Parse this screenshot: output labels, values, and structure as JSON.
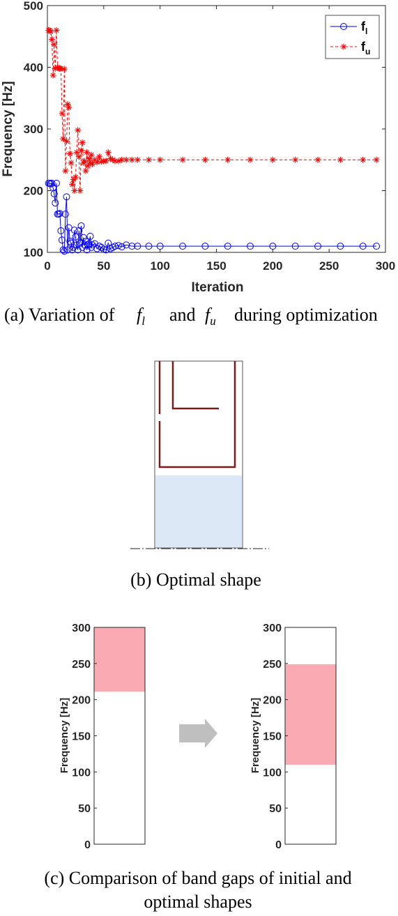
{
  "chart_data": [
    {
      "type": "line",
      "xlabel": "Iteration",
      "ylabel": "Frequency [Hz]",
      "xlim": [
        0,
        300
      ],
      "ylim": [
        100,
        500
      ],
      "xticks": [
        0,
        50,
        100,
        150,
        200,
        250,
        300
      ],
      "yticks": [
        100,
        200,
        300,
        400,
        500
      ],
      "legend": "top-right",
      "series": [
        {
          "name": "f_l",
          "legend_main": "f",
          "legend_sub": "l",
          "color": "#0000ff",
          "marker": "circle",
          "x": [
            1,
            2,
            3,
            4,
            5,
            6,
            7,
            8,
            9,
            10,
            11,
            12,
            13,
            14,
            15,
            16,
            17,
            18,
            19,
            20,
            21,
            22,
            23,
            24,
            25,
            26,
            27,
            28,
            29,
            30,
            31,
            32,
            33,
            34,
            35,
            36,
            37,
            38,
            39,
            40,
            42,
            44,
            46,
            48,
            50,
            52,
            54,
            56,
            58,
            60,
            63,
            66,
            70,
            75,
            80,
            90,
            100,
            120,
            140,
            160,
            180,
            200,
            220,
            240,
            260,
            280,
            292
          ],
          "y": [
            212,
            212,
            211,
            212,
            205,
            195,
            180,
            212,
            162,
            162,
            163,
            135,
            120,
            104,
            102,
            162,
            190,
            104,
            140,
            118,
            115,
            104,
            108,
            136,
            125,
            112,
            104,
            135,
            115,
            143,
            108,
            124,
            112,
            118,
            104,
            112,
            114,
            126,
            108,
            112,
            114,
            106,
            110,
            108,
            105,
            104,
            115,
            106,
            108,
            110,
            111,
            109,
            112,
            110,
            110,
            110,
            110,
            110,
            110,
            110,
            110,
            110,
            110,
            110,
            110,
            110,
            110
          ]
        },
        {
          "name": "f_u",
          "legend_main": "f",
          "legend_sub": "u",
          "color": "#ff0000",
          "marker": "star",
          "x": [
            1,
            2,
            3,
            4,
            5,
            6,
            7,
            8,
            9,
            10,
            11,
            12,
            13,
            14,
            15,
            16,
            17,
            18,
            19,
            20,
            21,
            22,
            23,
            24,
            25,
            26,
            27,
            28,
            29,
            30,
            31,
            32,
            33,
            34,
            35,
            36,
            37,
            38,
            39,
            40,
            42,
            44,
            46,
            48,
            50,
            52,
            54,
            56,
            58,
            60,
            63,
            66,
            70,
            75,
            80,
            90,
            100,
            120,
            140,
            160,
            180,
            200,
            220,
            240,
            260,
            280,
            292
          ],
          "y": [
            460,
            460,
            458,
            445,
            387,
            437,
            398,
            460,
            400,
            398,
            398,
            398,
            325,
            284,
            397,
            232,
            280,
            340,
            335,
            260,
            245,
            210,
            218,
            200,
            222,
            262,
            298,
            255,
            200,
            265,
            278,
            245,
            248,
            232,
            262,
            240,
            252,
            245,
            258,
            243,
            250,
            246,
            255,
            247,
            248,
            248,
            262,
            252,
            250,
            248,
            248,
            250,
            250,
            250,
            250,
            250,
            250,
            250,
            250,
            250,
            250,
            250,
            250,
            250,
            250,
            250,
            250
          ]
        }
      ]
    },
    {
      "type": "bar",
      "ylabel": "Frequency [Hz]",
      "ylim": [
        0,
        300
      ],
      "yticks": [
        0,
        50,
        100,
        150,
        200,
        250,
        300
      ],
      "band_gap": [
        211,
        300
      ],
      "color": "#f9aab2"
    },
    {
      "type": "bar",
      "ylabel": "Frequency [Hz]",
      "ylim": [
        0,
        300
      ],
      "yticks": [
        0,
        50,
        100,
        150,
        200,
        250,
        300
      ],
      "band_gap": [
        110,
        249
      ],
      "color": "#f9aab2"
    }
  ],
  "captions": {
    "a_prefix": "(a)  Variation  of",
    "a_f1": "f",
    "a_f1_sub": "l",
    "a_and": "and",
    "a_f2": "f",
    "a_f2_sub": "u",
    "a_suffix": "during  optimization",
    "b": "(b)  Optimal  shape",
    "c_line1": "(c)  Comparison  of  band  gaps  of  initial  and",
    "c_line2": "optimal  shapes"
  },
  "shape": {
    "fill_color": "#dce8f5",
    "line_color": "#7a1a1a"
  }
}
